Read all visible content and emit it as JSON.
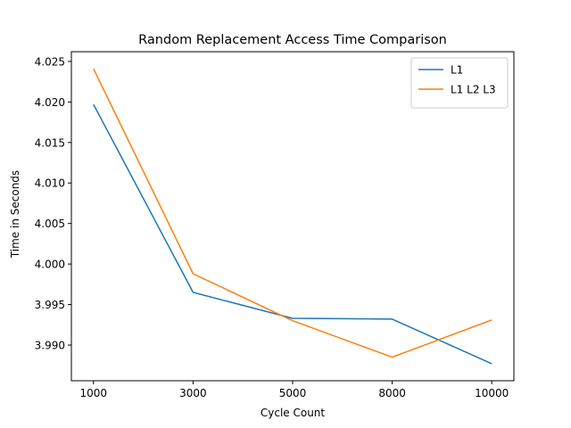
{
  "chart_data": {
    "type": "line",
    "title": "Random Replacement Access Time Comparison",
    "xlabel": "Cycle Count",
    "ylabel": "Time in Seconds",
    "categories": [
      "1000",
      "3000",
      "5000",
      "8000",
      "10000"
    ],
    "ylim": [
      3.9856,
      4.0262
    ],
    "yticks": [
      "3.990",
      "3.995",
      "4.000",
      "4.005",
      "4.010",
      "4.015",
      "4.020",
      "4.025"
    ],
    "grid": false,
    "legend_position": "top-right",
    "series": [
      {
        "name": "L1",
        "color": "#1f77b4",
        "values": [
          4.0197,
          3.9965,
          3.9933,
          3.9932,
          3.9877
        ]
      },
      {
        "name": "L1 L2 L3",
        "color": "#ff7f0e",
        "values": [
          4.0241,
          3.9988,
          3.993,
          3.9885,
          3.9931
        ]
      }
    ]
  }
}
